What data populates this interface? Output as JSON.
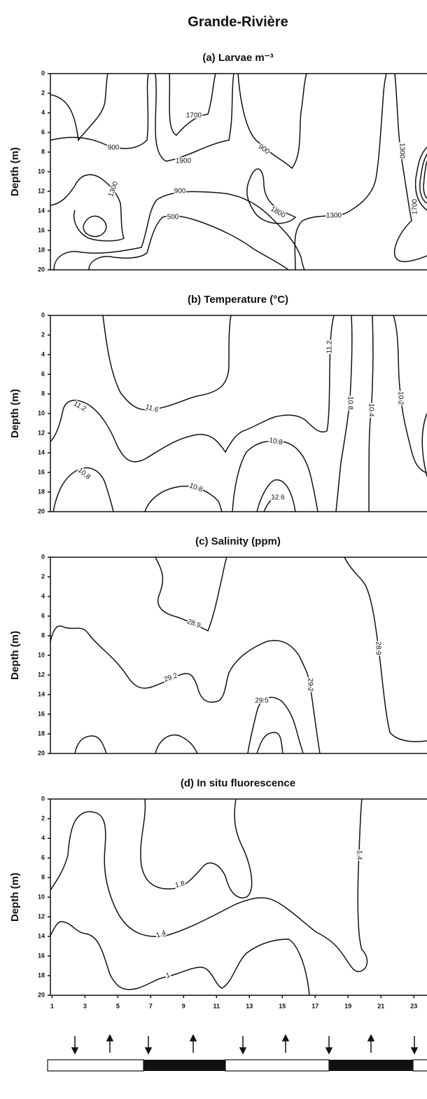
{
  "title": "Grande-Rivière",
  "chart_data": [
    {
      "type": "contour",
      "title": "(a) Larvae m⁻³",
      "y_label": "Depth (m)",
      "ylim": [
        0,
        20
      ],
      "yticks": [
        0,
        2,
        4,
        6,
        8,
        10,
        12,
        14,
        16,
        18,
        20
      ],
      "contour_levels": [
        1700,
        900,
        1900,
        900,
        1800,
        1300,
        900,
        500,
        1300,
        1300,
        1700
      ]
    },
    {
      "type": "contour",
      "title": "(b) Temperature (°C)",
      "y_label": "Depth (m)",
      "ylim": [
        0,
        20
      ],
      "yticks": [
        0,
        2,
        4,
        6,
        8,
        10,
        12,
        14,
        16,
        18,
        20
      ],
      "contour_levels": [
        11.2,
        11.6,
        11.2,
        10.8,
        10.8,
        10.8,
        12.6,
        10.8,
        10.4,
        10.2
      ]
    },
    {
      "type": "contour",
      "title": "(c) Salinity (ppm)",
      "y_label": "Depth (m)",
      "ylim": [
        0,
        20
      ],
      "yticks": [
        0,
        2,
        4,
        6,
        8,
        10,
        12,
        14,
        16,
        18,
        20
      ],
      "contour_levels": [
        28.9,
        29.2,
        29.5,
        29.2,
        28.9
      ]
    },
    {
      "type": "contour",
      "title": "(d) In situ fluorescence",
      "y_label": "Depth (m)",
      "ylim": [
        0,
        20
      ],
      "yticks": [
        0,
        2,
        4,
        6,
        8,
        10,
        12,
        14,
        16,
        18,
        20
      ],
      "xlim": [
        0.9,
        23.8
      ],
      "xticks": [
        1,
        3,
        5,
        7,
        9,
        11,
        13,
        15,
        17,
        19,
        21,
        23
      ],
      "contour_levels": [
        1.8,
        1.4,
        1.0,
        1.4
      ]
    }
  ]
}
